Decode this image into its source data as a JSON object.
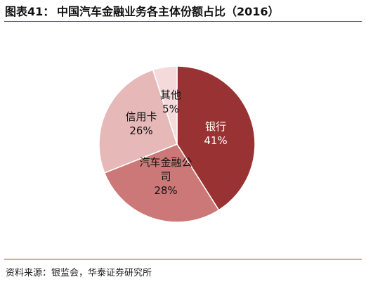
{
  "header": {
    "figure_label": "图表41：",
    "title": "中国汽车金融业务各主体份额占比（2016）"
  },
  "chart_data": {
    "type": "pie",
    "title": "中国汽车金融业务各主体份额占比（2016）",
    "slices": [
      {
        "name": "银行",
        "value": 41,
        "label_lines": [
          "银行"
        ],
        "value_label": "41%",
        "color": "#993333"
      },
      {
        "name": "汽车金融公司",
        "value": 28,
        "label_lines": [
          "汽车金融公",
          "司"
        ],
        "value_label": "28%",
        "color": "#cc7878"
      },
      {
        "name": "信用卡",
        "value": 26,
        "label_lines": [
          "信用卡"
        ],
        "value_label": "26%",
        "color": "#e6b8b8"
      },
      {
        "name": "其他",
        "value": 5,
        "label_lines": [
          "其他"
        ],
        "value_label": "5%",
        "color": "#f4dada"
      }
    ],
    "start_angle_deg": -90,
    "direction": "clockwise"
  },
  "footer": {
    "source": "资料来源：银监会，华泰证券研究所"
  }
}
